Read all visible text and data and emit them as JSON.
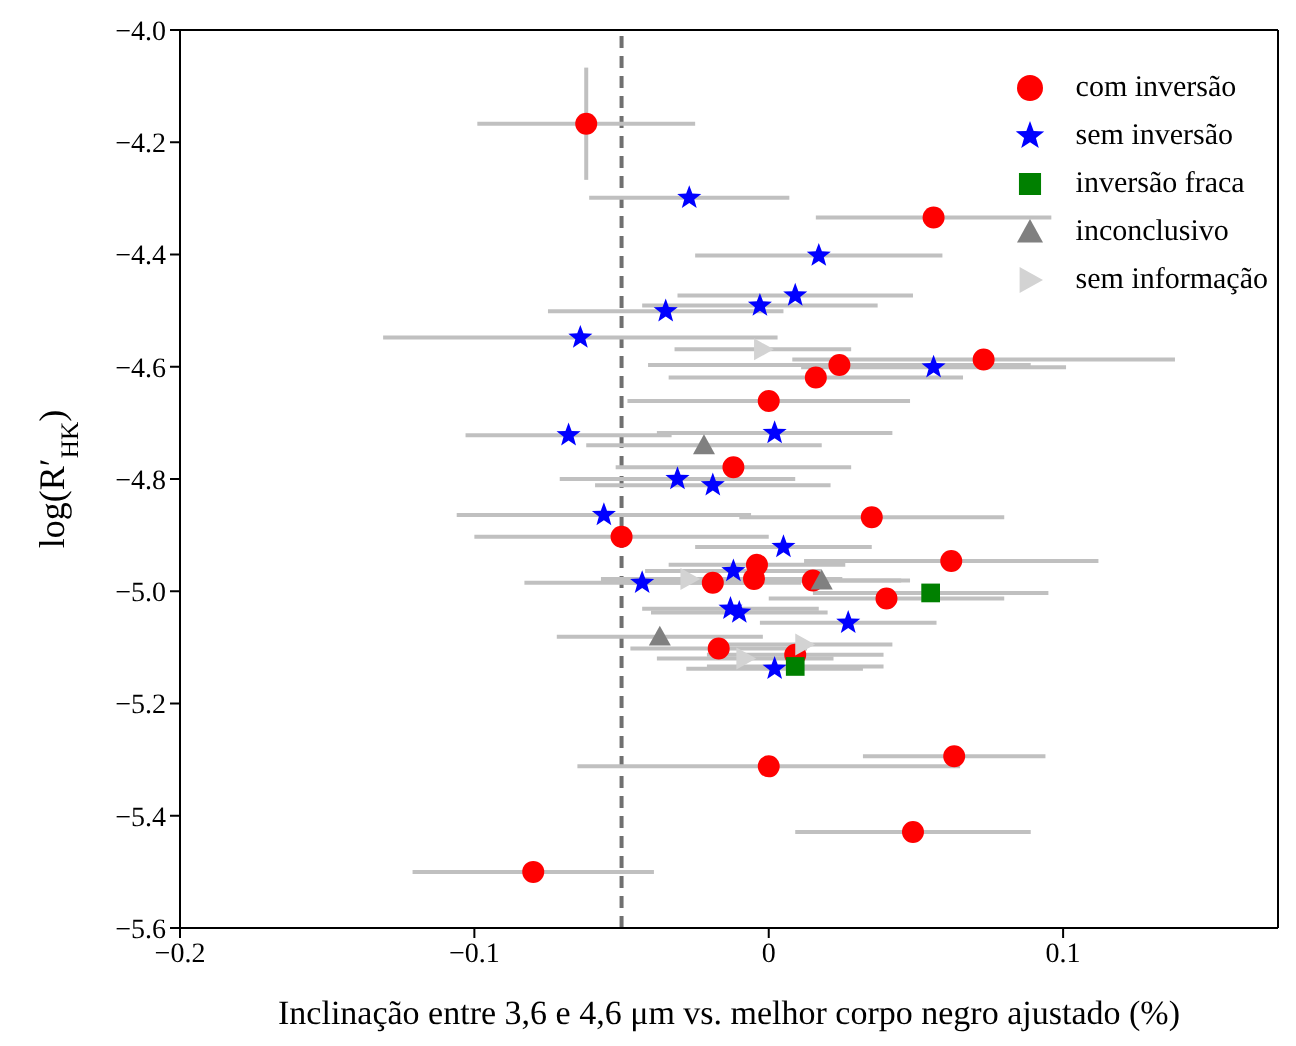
{
  "chart_data": {
    "type": "scatter",
    "xlabel": "Inclinação entre 3,6 e 4,6 μm vs. melhor corpo negro ajustado (%)",
    "ylabel": "log(R′$_{HK}$)",
    "xlim": [
      -0.2,
      0.173
    ],
    "ylim": [
      -5.6,
      -4.0
    ],
    "xticks": [
      {
        "value": -0.2,
        "label": "−0.2"
      },
      {
        "value": -0.1,
        "label": "−0.1"
      },
      {
        "value": 0,
        "label": "0"
      },
      {
        "value": 0.1,
        "label": "0.1"
      }
    ],
    "yticks": [
      {
        "value": -5.6,
        "label": "−5.6"
      },
      {
        "value": -5.4,
        "label": "−5.4"
      },
      {
        "value": -5.2,
        "label": "−5.2"
      },
      {
        "value": -5.0,
        "label": "−5.0"
      },
      {
        "value": -4.8,
        "label": "−4.8"
      },
      {
        "value": -4.6,
        "label": "−4.6"
      },
      {
        "value": -4.4,
        "label": "−4.4"
      },
      {
        "value": -4.2,
        "label": "−4.2"
      },
      {
        "value": -4.0,
        "label": "−4.0"
      }
    ],
    "grid": false,
    "legend": "top right",
    "ref_lines": [
      {
        "axis": "x",
        "value": -0.05,
        "color": "#707070",
        "line_style": "dashed"
      }
    ],
    "series": [
      {
        "name": "com inversão",
        "color": "#ff0000",
        "marker": "circle",
        "x": [
          -0.062,
          0.056,
          0.073,
          0.024,
          0.016,
          0.0,
          -0.012,
          -0.05,
          0.035,
          0.062,
          -0.004,
          -0.005,
          0.015,
          -0.019,
          0.04,
          -0.017,
          0.009,
          0.063,
          0.0,
          0.049,
          -0.08
        ],
        "values": [
          -4.167,
          -4.334,
          -4.587,
          -4.597,
          -4.619,
          -4.661,
          -4.779,
          -4.903,
          -4.868,
          -4.946,
          -4.953,
          -4.978,
          -4.981,
          -4.985,
          -5.013,
          -5.102,
          -5.113,
          -5.294,
          -5.312,
          -5.429,
          -5.5
        ],
        "xerrors": [
          0.037,
          0.04,
          0.065,
          0.065,
          0.05,
          0.048,
          0.04,
          0.05,
          0.045,
          0.05,
          0.03,
          0.03,
          0.03,
          0.03,
          0.04,
          0.03,
          0.03,
          0.031,
          0.065,
          0.04,
          0.041
        ],
        "errors": [
          0.1,
          null,
          null,
          null,
          null,
          null,
          null,
          null,
          null,
          null,
          null,
          null,
          null,
          null,
          null,
          null,
          null,
          null,
          null,
          null,
          null
        ]
      },
      {
        "name": "sem inversão",
        "color": "#0000ff",
        "marker": "star",
        "x": [
          -0.027,
          -0.035,
          -0.064,
          -0.068,
          -0.031,
          -0.019,
          0.017,
          0.009,
          -0.003,
          0.056,
          0.002,
          -0.056,
          -0.043,
          -0.012,
          -0.013,
          -0.01,
          0.005,
          0.027,
          0.002
        ],
        "values": [
          -4.299,
          -4.501,
          -4.548,
          -4.722,
          -4.8,
          -4.811,
          -4.402,
          -4.473,
          -4.491,
          -4.601,
          -4.718,
          -4.864,
          -4.985,
          -4.964,
          -5.031,
          -5.038,
          -4.921,
          -5.056,
          -5.138
        ],
        "xerrors": [
          0.034,
          0.04,
          0.067,
          0.035,
          0.04,
          0.04,
          0.042,
          0.04,
          0.04,
          0.045,
          0.04,
          0.05,
          0.04,
          0.03,
          0.03,
          0.03,
          0.03,
          0.03,
          0.03
        ]
      },
      {
        "name": "inversão fraca",
        "color": "#008000",
        "marker": "square",
        "x": [
          0.055,
          0.009
        ],
        "values": [
          -5.003,
          -5.134
        ],
        "xerrors": [
          0.04,
          0.03
        ]
      },
      {
        "name": "inconclusivo",
        "color": "#808080",
        "marker": "triangle",
        "x": [
          -0.022,
          0.018,
          -0.037
        ],
        "values": [
          -4.74,
          -4.981,
          -5.081
        ],
        "xerrors": [
          0.04,
          0.03,
          0.035
        ]
      },
      {
        "name": "sem informação",
        "color": "#d3d3d3",
        "marker": "triangle-right",
        "x": [
          -0.002,
          -0.027,
          -0.008,
          0.012
        ],
        "values": [
          -4.569,
          -4.978,
          -5.12,
          -5.095
        ],
        "xerrors": [
          0.03,
          0.03,
          0.03,
          0.03
        ]
      }
    ]
  }
}
